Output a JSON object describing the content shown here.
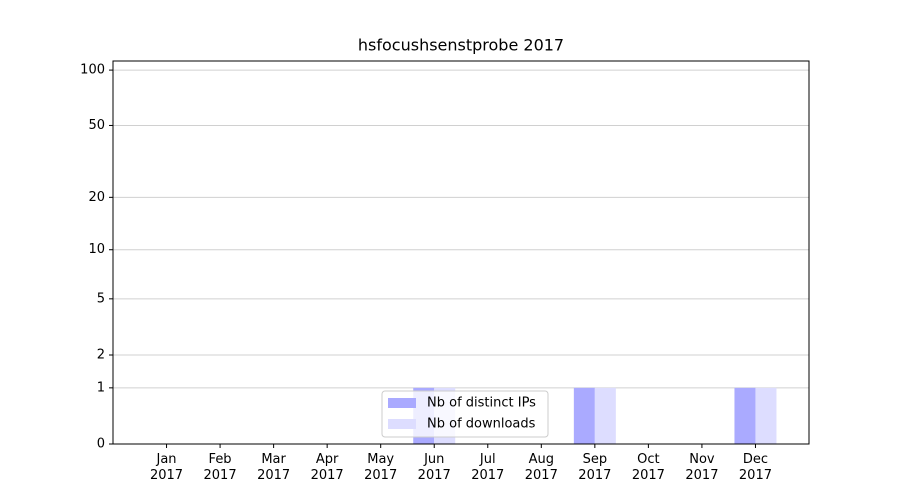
{
  "chart_data": {
    "type": "bar",
    "title": "hsfocushsenstprobe 2017",
    "categories": [
      "Jan\n2017",
      "Feb\n2017",
      "Mar\n2017",
      "Apr\n2017",
      "May\n2017",
      "Jun\n2017",
      "Jul\n2017",
      "Aug\n2017",
      "Sep\n2017",
      "Oct\n2017",
      "Nov\n2017",
      "Dec\n2017"
    ],
    "series": [
      {
        "name": "Nb of distinct IPs",
        "color": "#aaaaff",
        "values": [
          0,
          0,
          0,
          0,
          0,
          1,
          0,
          0,
          1,
          0,
          0,
          1
        ]
      },
      {
        "name": "Nb of downloads",
        "color": "#ddddff",
        "values": [
          0,
          0,
          0,
          0,
          0,
          1,
          0,
          0,
          1,
          0,
          0,
          1
        ]
      }
    ],
    "yscale": "log1p",
    "ylim": [
      0,
      112
    ],
    "yticks": [
      0,
      1,
      2,
      5,
      10,
      20,
      50,
      100
    ],
    "grid": true,
    "legend": "lower center"
  }
}
